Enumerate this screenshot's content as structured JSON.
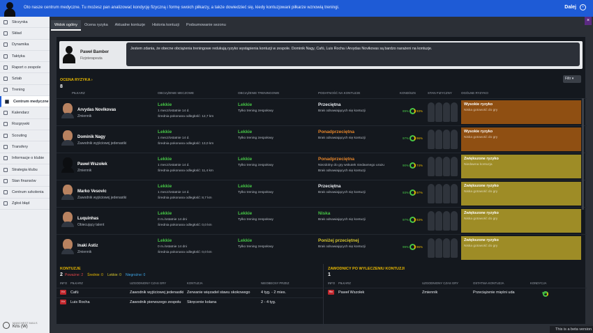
{
  "notification": {
    "message": "Oto nasze centrum medyczne. Tu możesz pan analizować kondycję fizyczną i formę swoich piłkarzy, a także dowiedzieć się, kiedy kontuzjowani piłkarze wznowią treningi.",
    "next_label": "Dalej"
  },
  "sidebar": {
    "items": [
      {
        "label": "Skrzynka"
      },
      {
        "label": "Skład"
      },
      {
        "label": "Dynamika"
      },
      {
        "label": "Taktyka"
      },
      {
        "label": "Raport o zespole"
      },
      {
        "label": "Sztab"
      },
      {
        "label": "Trening"
      },
      {
        "label": "Centrum medyczne"
      },
      {
        "label": "Kalendarz"
      },
      {
        "label": "Rozgrywki"
      },
      {
        "label": "Scouting"
      },
      {
        "label": "Transfery"
      },
      {
        "label": "Informacje o klubie"
      },
      {
        "label": "Strategia klubu"
      },
      {
        "label": "Stan finansów"
      },
      {
        "label": "Centrum szkolenia"
      },
      {
        "label": "Zgłoś błąd"
      }
    ],
    "active_index": 7,
    "user_label": "MANCHEST MAILS",
    "user_name": "Kris (W)"
  },
  "tabs": [
    "Widok ogólny",
    "Ocena ryzyka",
    "Aktualne kontuzje",
    "Historia kontuzji",
    "Podsumowanie sezonu"
  ],
  "physio": {
    "name": "Paweł Bamber",
    "role": "Fizjoterapeuta",
    "quote": "Jestem zdania, że obecne obciążenia treningowe redukują ryzyko wystąpienia kontuzji w zespole. Dominik Nagy, Cafú, Luis Rocha i Arvydas Novikovas są bardzo narażeni na kontuzje."
  },
  "risk_section": {
    "title": "OCENA RYZYKA",
    "count": "8",
    "filter_label": "Filtr",
    "columns": [
      "PIŁKARZ",
      "OBCIĄŻENIE MECZOWE",
      "OBCIĄŻENIE TRENINGOWE",
      "PODATNOŚĆ NA KONTUZJE",
      "KOND/SZS",
      "STAN FIZYCZNY",
      "OGÓLNE RYZYKO"
    ]
  },
  "players": [
    {
      "name": "Arvydas Novikovas",
      "role": "Zmiennik",
      "match_load": "Lekkie",
      "match_stats": "1 mecz/ostatnie 14 d.",
      "match_dist": "Średnia pokonana odległość: 12,7 km",
      "train_load": "Lekkie",
      "train_desc": "Tylko trening zespołowy",
      "susc": "Przeciętna",
      "susc_color": "#e8ebf0",
      "susc_desc": "Brak odnawiających się kontuzji",
      "cond": "89%",
      "sharp": "93%",
      "risk": "Wysokie ryzyko",
      "risk_desc": "Niska gotowość do gry",
      "risk_color": "#8f4f12",
      "shadow": false
    },
    {
      "name": "Dominik Nagy",
      "role": "Zawodnik wyjściowej jedenastki",
      "match_load": "Lekkie",
      "match_stats": "1 mecz/ostatnie 14 d.",
      "match_dist": "Średnia pokonana odległość: 13,0 km",
      "train_load": "Lekkie",
      "train_desc": "Tylko trening zespołowy",
      "susc": "Ponadprzeciętna",
      "susc_color": "#e8862a",
      "susc_desc": "Brak odnawiających się kontuzji",
      "cond": "97%",
      "sharp": "96%",
      "risk": "Wysokie ryzyko",
      "risk_desc": "Niska gotowość do gry",
      "risk_color": "#8f4f12",
      "shadow": false
    },
    {
      "name": "Paweł Wszołek",
      "role": "Zmiennik",
      "match_load": "Lekkie",
      "match_stats": "1 mecz/ostatnie 14 d.",
      "match_dist": "Średnia pokonana odległość: 11,4 km",
      "train_load": "Lekkie",
      "train_desc": "Tylko trening zespołowy",
      "susc": "Ponadprzeciętna",
      "susc_color": "#e8862a",
      "susc_desc": "Niezdolny do gry wskutek niedawnego urazu",
      "susc_desc2": "Brak odnawiających się kontuzji",
      "cond": "90%",
      "sharp": "74%",
      "risk": "Zwiększone ryzyko",
      "risk_desc": "Niedawna kontuzja",
      "risk_color": "#9e8c26",
      "shadow": true
    },
    {
      "name": "Marko Vesovic",
      "role": "Zawodnik wyjściowej jedenastki",
      "match_load": "Lekkie",
      "match_stats": "1 mecz/ostatnie 14 d.",
      "match_dist": "Średnia pokonana odległość: 8,7 km",
      "train_load": "Lekkie",
      "train_desc": "Tylko trening zespołowy",
      "susc": "Przeciętna",
      "susc_color": "#e8ebf0",
      "susc_desc": "Brak odnawiających się kontuzji",
      "cond": "93%",
      "sharp": "97%",
      "risk": "Zwiększone ryzyko",
      "risk_desc": "Niska gotowość do gry",
      "risk_color": "#9e8c26",
      "shadow": false
    },
    {
      "name": "Luquinhas",
      "role": "Obiecujący talent",
      "match_load": "Lekkie",
      "match_stats": "0 m./ostatnie 14 dni",
      "match_dist": "Średnia pokonana odległość: 0,0 km",
      "train_load": "Lekkie",
      "train_desc": "Tylko trening zespołowy",
      "susc": "Niska",
      "susc_color": "#46c646",
      "susc_desc": "Brak odnawiających się kontuzji",
      "cond": "97%",
      "sharp": "93%",
      "risk": "Zwiększone ryzyko",
      "risk_desc": "Niska gotowość do gry",
      "risk_color": "#9e8c26",
      "shadow": false
    },
    {
      "name": "Inaki Astiz",
      "role": "Zmiennik",
      "match_load": "Lekkie",
      "match_stats": "0 m./ostatnie 14 dni",
      "match_dist": "Średnia pokonana odległość: 0,0 km",
      "train_load": "Lekkie",
      "train_desc": "Tylko trening zespołowy",
      "susc": "Poniżej przeciętnej",
      "susc_color": "#d6c62e",
      "susc_desc": "Brak odnawiających się kontuzji",
      "cond": "99%",
      "sharp": "96%",
      "risk": "Zwiększone ryzyko",
      "risk_desc": "Niska gotowość do gry",
      "risk_color": "#9e8c26",
      "shadow": false
    }
  ],
  "injuries": {
    "title": "KONTUZJE",
    "count": "2",
    "legend": [
      {
        "label": "Poważne: 2",
        "color": "#e0454a"
      },
      {
        "label": "Średnie: 0",
        "color": "#e8b800"
      },
      {
        "label": "Lekkie: 0",
        "color": "#d6c62e"
      },
      {
        "label": "Niegroźne: 0",
        "color": "#3da6e8"
      }
    ],
    "columns": [
      "INFO",
      "PIŁKARZ",
      "UZGODNIONY CZAS GRY",
      "KONTUZJA",
      "NIEOBECNY PRZEZ"
    ],
    "rows": [
      {
        "badge": "Kn",
        "player": "Cafú",
        "status": "Zawodnik wyjściowej jedenastki",
        "injury": "Zerwanie więzadeł stawu skokowego",
        "absent": "4 tyg. - 2 mies."
      },
      {
        "badge": "Kn",
        "player": "Luis Rocha",
        "status": "Zawodnik pierwszego zespołu",
        "injury": "Skręcenie kolana",
        "absent": "2 - 4 tyg."
      }
    ]
  },
  "recovered": {
    "title": "ZAWODNICY PO WYLECZENIU KONTUZJI",
    "count": "1",
    "columns": [
      "INFO",
      "PIŁKARZ",
      "UZGODNIONY CZAS GRY",
      "OSTATNIA KONTUZJA",
      "KONDYCJA"
    ],
    "rows": [
      {
        "badge": "Rtn",
        "player": "Paweł Wszołek",
        "status": "Zmiennik",
        "injury": "Przeciążenie mięśni uda",
        "cond": "90%",
        "sharp": "74%"
      }
    ]
  },
  "beta_text": "This is a beta version"
}
